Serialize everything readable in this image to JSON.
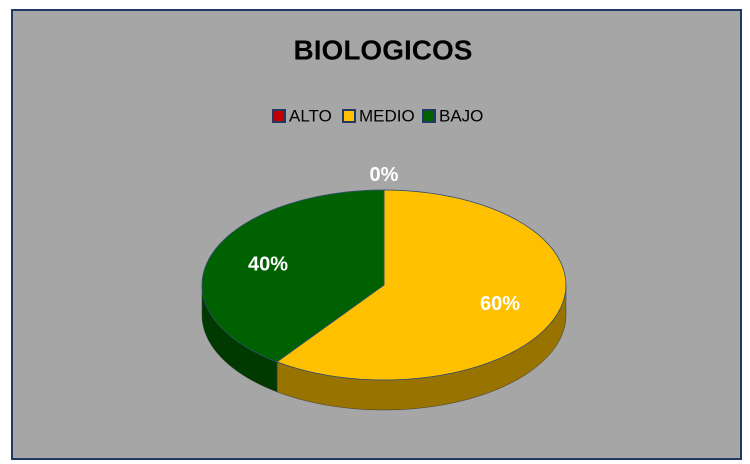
{
  "chart_data": {
    "type": "pie",
    "title": "BIOLOGICOS",
    "categories": [
      "ALTO",
      "MEDIO",
      "BAJO"
    ],
    "values": [
      0,
      60,
      40
    ],
    "value_labels": [
      "0%",
      "60%",
      "40%"
    ],
    "colors": [
      "#c00000",
      "#ffc000",
      "#006100"
    ],
    "legend": "top"
  }
}
